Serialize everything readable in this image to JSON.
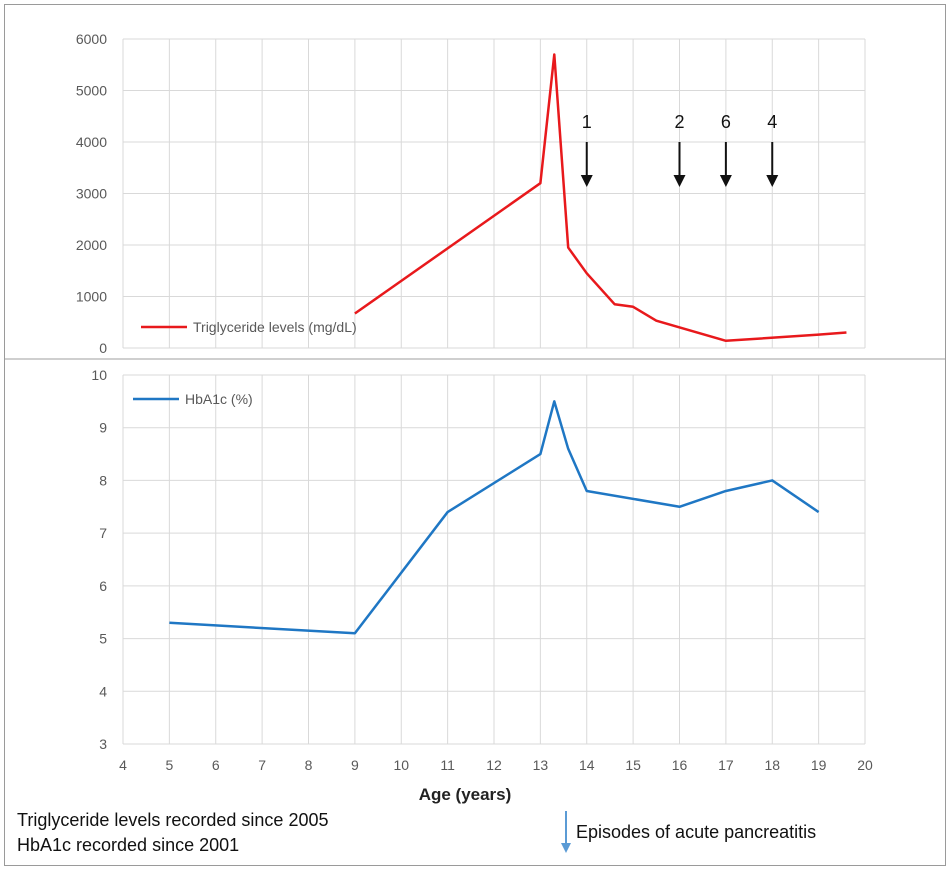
{
  "chart_data": [
    {
      "type": "line",
      "title": "",
      "xlabel": "",
      "ylabel": "",
      "xlim": [
        4,
        20
      ],
      "ylim": [
        0,
        6000
      ],
      "yticks": [
        0,
        1000,
        2000,
        3000,
        4000,
        5000,
        6000
      ],
      "grid": true,
      "legend_position": "bottom-left",
      "series": [
        {
          "name": "Triglyceride levels (mg/dL)",
          "color": "#e8191c",
          "x": [
            9,
            13,
            13.3,
            13.6,
            14,
            14.6,
            15,
            15.5,
            17,
            19,
            19.6
          ],
          "y": [
            670,
            3200,
            5700,
            1950,
            1450,
            850,
            800,
            530,
            140,
            260,
            300
          ]
        }
      ],
      "annotations": [
        {
          "x": 14,
          "label": "1"
        },
        {
          "x": 16,
          "label": "2"
        },
        {
          "x": 17,
          "label": "6"
        },
        {
          "x": 18,
          "label": "4"
        }
      ]
    },
    {
      "type": "line",
      "title": "",
      "xlabel": "Age (years)",
      "ylabel": "",
      "xlim": [
        4,
        20
      ],
      "xticks": [
        4,
        5,
        6,
        7,
        8,
        9,
        10,
        11,
        12,
        13,
        14,
        15,
        16,
        17,
        18,
        19,
        20
      ],
      "ylim": [
        3,
        10
      ],
      "yticks": [
        3,
        4,
        5,
        6,
        7,
        8,
        9,
        10
      ],
      "grid": true,
      "legend_position": "top-left",
      "series": [
        {
          "name": "HbA1c (%)",
          "color": "#1f77c4",
          "x": [
            5,
            9,
            11,
            13,
            13.3,
            13.6,
            14,
            16,
            17,
            18,
            19
          ],
          "y": [
            5.3,
            5.1,
            7.4,
            8.5,
            9.5,
            8.6,
            7.8,
            7.5,
            7.8,
            8.0,
            7.4
          ]
        }
      ]
    }
  ],
  "notes": {
    "line1": "Triglyceride levels recorded since 2005",
    "line2": "HbA1c recorded since 2001",
    "pancreatitis_label": "Episodes of acute pancreatitis",
    "pancreatitis_arrow_color": "#5b9bd5"
  }
}
